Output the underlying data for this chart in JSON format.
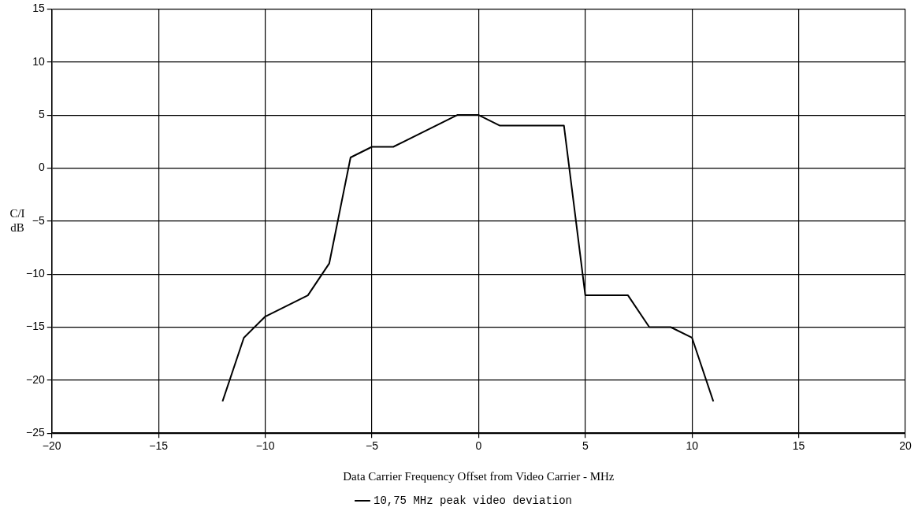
{
  "chart_data": {
    "type": "line",
    "xlabel": "Data Carrier Frequency Offset from Video Carrier - MHz",
    "ylabel": "C/I\ndB",
    "series": [
      {
        "name": "10,75 MHz peak video deviation",
        "color": "#000000",
        "x": [
          -12,
          -11,
          -10,
          -8,
          -7,
          -6,
          -5,
          -4,
          -1,
          0,
          1,
          4,
          5,
          7,
          8,
          9,
          10,
          11
        ],
        "values": [
          -22,
          -16,
          -14,
          -12,
          -9,
          1,
          2,
          2,
          5,
          5,
          4,
          4,
          -12,
          -12,
          -15,
          -15,
          -16,
          -22
        ]
      }
    ],
    "xlim": [
      -20,
      20
    ],
    "xticks": [
      -20,
      -15,
      -10,
      -5,
      0,
      5,
      10,
      15,
      20
    ],
    "ylim": [
      -25,
      15
    ],
    "yticks": [
      -25,
      -20,
      -15,
      -10,
      -5,
      0,
      5,
      10,
      15
    ],
    "grid": true,
    "legend": "bottom",
    "marker": "none",
    "line_style": "solid"
  }
}
